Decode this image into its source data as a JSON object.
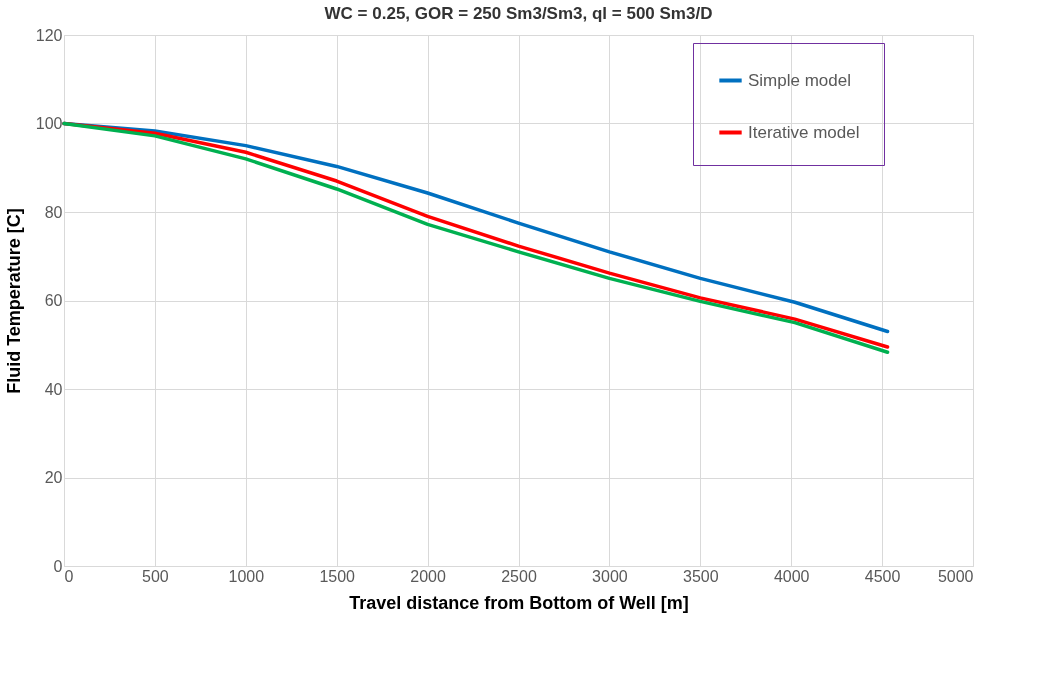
{
  "chart_data": {
    "type": "line",
    "title": "WC = 0.25, GOR = 250 Sm3/Sm3, ql = 500 Sm3/D",
    "xlabel": "Travel distance from Bottom of Well [m]",
    "ylabel": "Fluid Temperature [C]",
    "xlim": [
      0,
      5000
    ],
    "xticks": [
      0,
      500,
      1000,
      1500,
      2000,
      2500,
      3000,
      3500,
      4000,
      4500,
      5000
    ],
    "ylim": [
      0,
      120
    ],
    "yticks": [
      0,
      20,
      40,
      60,
      80,
      100,
      120
    ],
    "grid": true,
    "legend": "top right",
    "marker": "none",
    "line_style": "solid",
    "series": [
      {
        "name": "Simple model",
        "color": "#0070c0",
        "x": [
          0,
          500,
          1000,
          1500,
          2000,
          2500,
          3000,
          3500,
          4020,
          4530
        ],
        "values": [
          100,
          98.3,
          95,
          90.3,
          84.3,
          77.5,
          71,
          65,
          59.6,
          53
        ]
      },
      {
        "name": "Iterative model",
        "color": "#ff0000",
        "x": [
          0,
          500,
          1000,
          1500,
          2000,
          2500,
          3000,
          3500,
          4020,
          4530
        ],
        "values": [
          100,
          97.8,
          93.5,
          87,
          79,
          72.3,
          66.2,
          60.6,
          55.8,
          49.5
        ]
      },
      {
        "color": "#00b050",
        "x": [
          0,
          500,
          1000,
          1500,
          2000,
          2500,
          3000,
          3500,
          4020,
          4530
        ],
        "values": [
          100,
          97.2,
          92,
          85.2,
          77.2,
          71,
          65,
          59.8,
          55,
          48.3
        ]
      }
    ]
  }
}
